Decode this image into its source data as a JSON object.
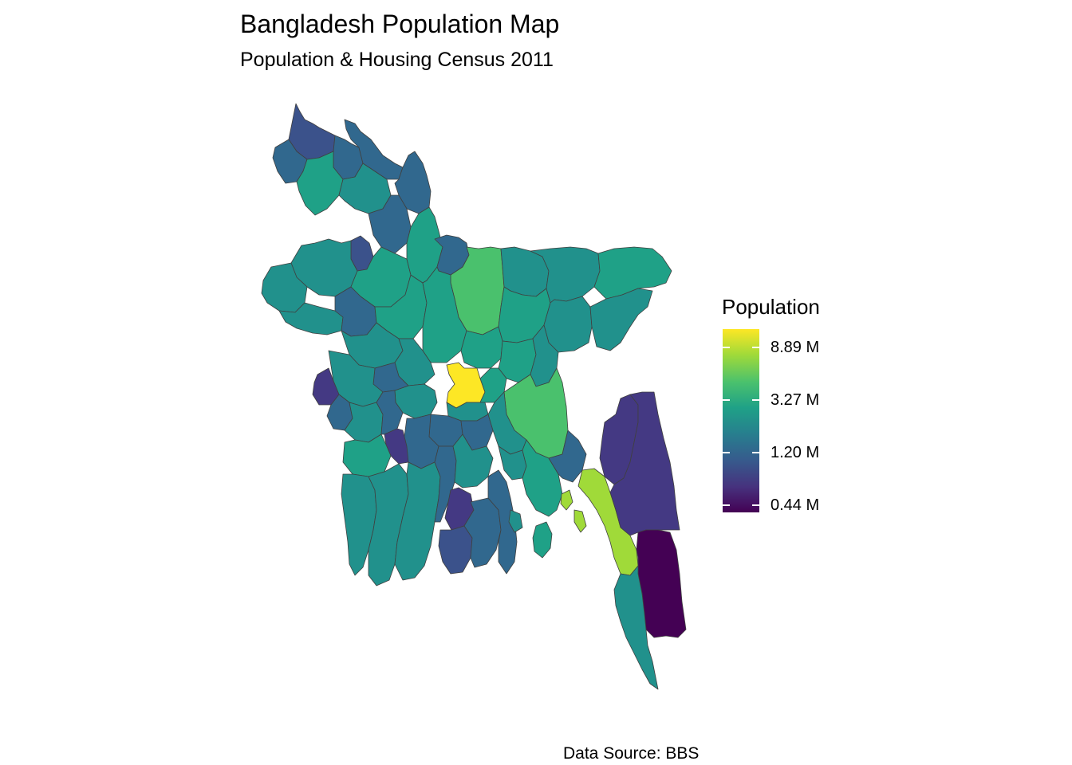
{
  "title": "Bangladesh Population Map",
  "subtitle": "Population & Housing Census 2011",
  "caption": "Data Source: BBS",
  "legend": {
    "title": "Population",
    "labels": [
      "8.89 M",
      "3.27 M",
      "1.20 M",
      "0.44 M"
    ],
    "palette": [
      "#440154",
      "#46327e",
      "#365c8d",
      "#277f8e",
      "#1fa187",
      "#4ac16d",
      "#a0da39",
      "#fde725"
    ]
  },
  "map": {
    "fill_colors": {
      "very_high": "#fde725",
      "high": "#a0da39",
      "upper_mid": "#4ac16d",
      "mid_high": "#1fa187",
      "mid": "#21918c",
      "mid_low": "#277f8e",
      "low": "#31688e",
      "lower": "#3b528b",
      "very_low": "#443983",
      "lowest": "#440154"
    },
    "border_color": "#404040"
  }
}
